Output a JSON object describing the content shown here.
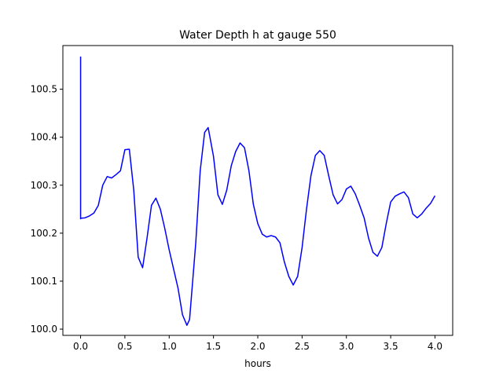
{
  "chart_data": {
    "type": "line",
    "title": "Water Depth h at gauge 550",
    "xlabel": "hours",
    "ylabel": "",
    "xlim": [
      -0.2,
      4.2
    ],
    "ylim": [
      99.987,
      100.591
    ],
    "xticks": [
      0.0,
      0.5,
      1.0,
      1.5,
      2.0,
      2.5,
      3.0,
      3.5,
      4.0
    ],
    "xtick_labels": [
      "0.0",
      "0.5",
      "1.0",
      "1.5",
      "2.0",
      "2.5",
      "3.0",
      "3.5",
      "4.0"
    ],
    "yticks": [
      100.0,
      100.1,
      100.2,
      100.3,
      100.4,
      100.5
    ],
    "ytick_labels": [
      "100.0",
      "100.1",
      "100.2",
      "100.3",
      "100.4",
      "100.5"
    ],
    "grid": false,
    "series": [
      {
        "color": "#0000ff",
        "x": [
          0.0,
          0.0,
          0.0,
          0.05,
          0.1,
          0.15,
          0.2,
          0.25,
          0.3,
          0.35,
          0.4,
          0.45,
          0.5,
          0.55,
          0.6,
          0.65,
          0.7,
          0.75,
          0.8,
          0.85,
          0.9,
          0.95,
          1.0,
          1.05,
          1.1,
          1.15,
          1.2,
          1.23,
          1.3,
          1.35,
          1.4,
          1.44,
          1.5,
          1.55,
          1.6,
          1.65,
          1.7,
          1.75,
          1.8,
          1.85,
          1.9,
          1.95,
          2.0,
          2.05,
          2.1,
          2.15,
          2.2,
          2.25,
          2.3,
          2.35,
          2.4,
          2.45,
          2.5,
          2.55,
          2.6,
          2.65,
          2.7,
          2.75,
          2.8,
          2.85,
          2.9,
          2.95,
          3.0,
          3.05,
          3.1,
          3.15,
          3.2,
          3.25,
          3.3,
          3.35,
          3.4,
          3.45,
          3.5,
          3.55,
          3.6,
          3.65,
          3.7,
          3.75,
          3.8,
          3.85,
          3.9,
          3.95,
          4.0
        ],
        "y": [
          100.568,
          100.23,
          100.231,
          100.232,
          100.236,
          100.242,
          100.258,
          100.3,
          100.318,
          100.315,
          100.322,
          100.33,
          100.374,
          100.375,
          100.29,
          100.15,
          100.128,
          100.19,
          100.258,
          100.273,
          100.25,
          100.21,
          100.165,
          100.125,
          100.085,
          100.03,
          100.008,
          100.02,
          100.18,
          100.33,
          100.41,
          100.42,
          100.36,
          100.28,
          100.26,
          100.29,
          100.34,
          100.37,
          100.388,
          100.378,
          100.33,
          100.26,
          100.22,
          100.198,
          100.192,
          100.195,
          100.192,
          100.18,
          100.14,
          100.11,
          100.092,
          100.11,
          100.17,
          100.25,
          100.32,
          100.362,
          100.372,
          100.362,
          100.32,
          100.28,
          100.261,
          100.27,
          100.292,
          100.298,
          100.282,
          100.258,
          100.232,
          100.19,
          100.16,
          100.152,
          100.17,
          100.22,
          100.265,
          100.277,
          100.282,
          100.286,
          100.274,
          100.24,
          100.232,
          100.24,
          100.252,
          100.262,
          100.278
        ]
      }
    ]
  }
}
